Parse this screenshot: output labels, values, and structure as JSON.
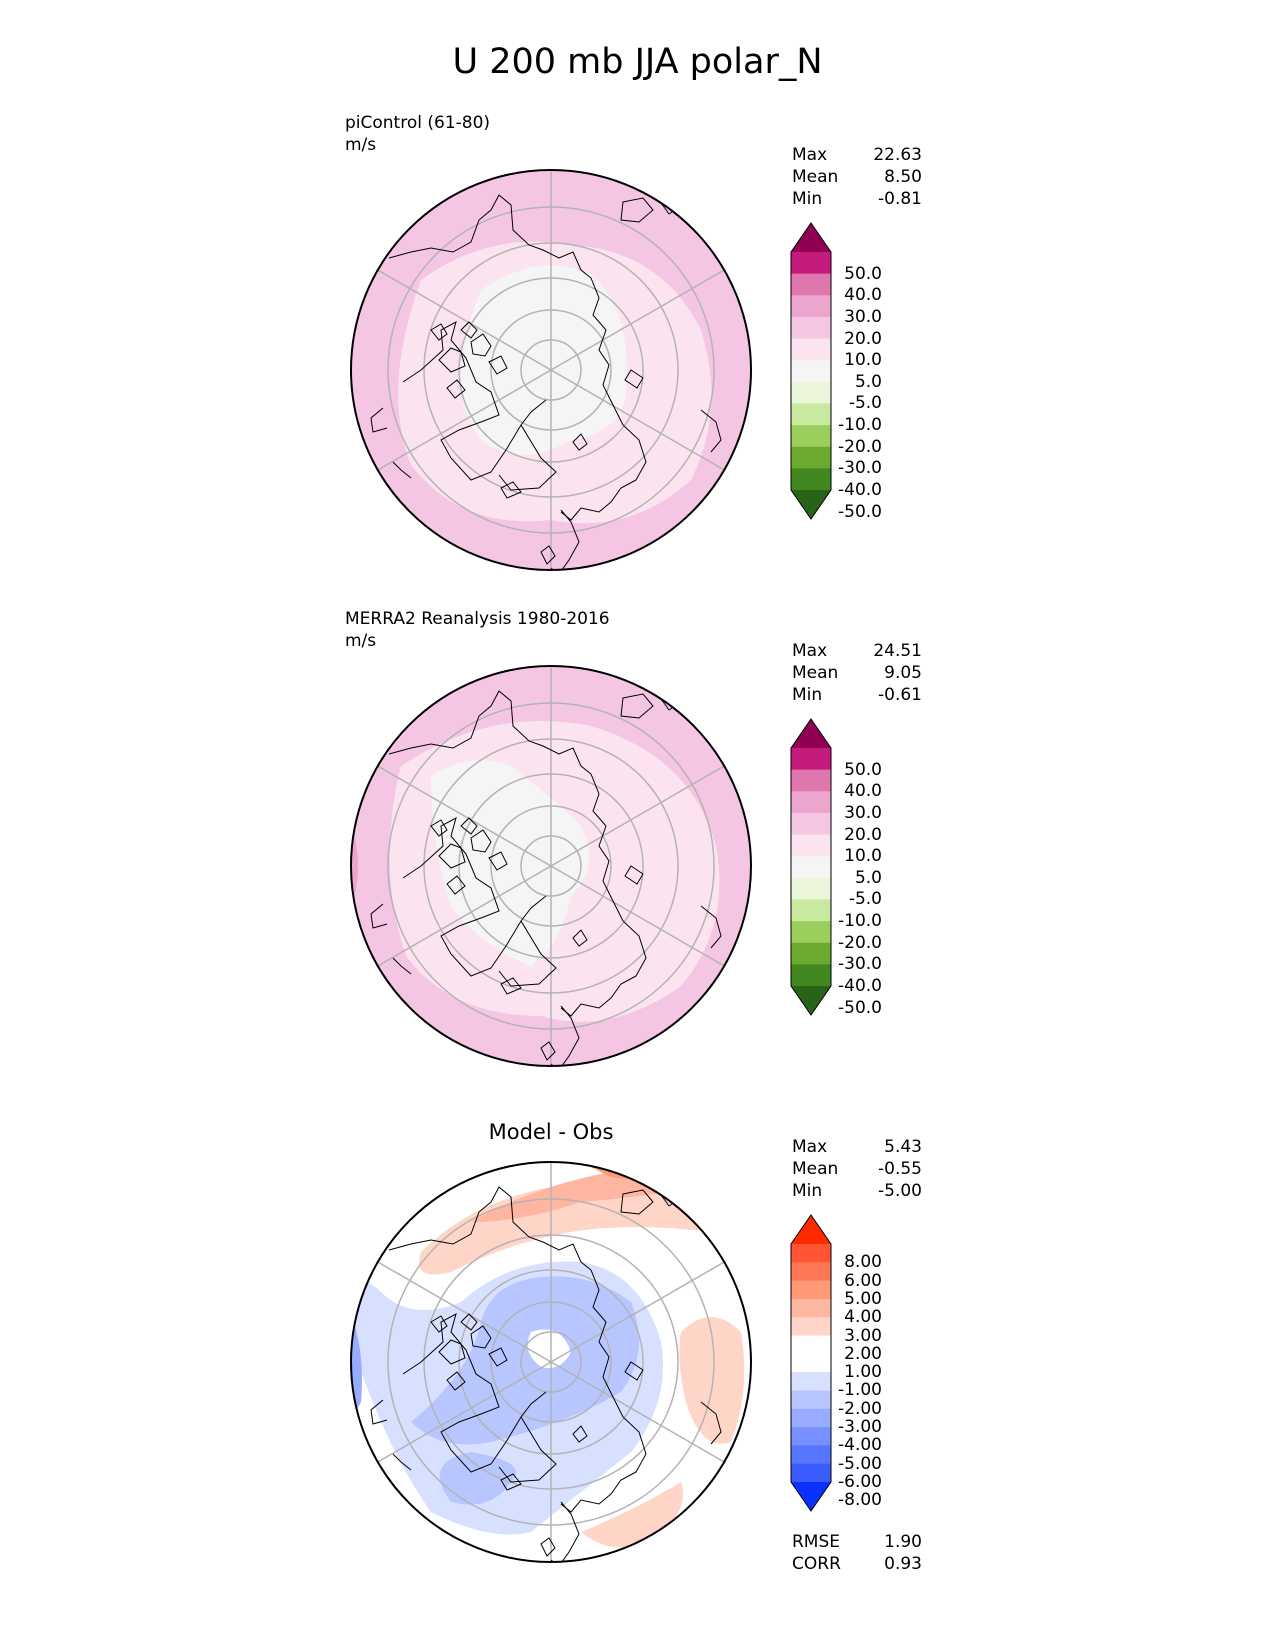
{
  "title": "U 200 mb JJA polar_N",
  "panels": [
    {
      "id": "model",
      "title_lines": [
        "piControl (61-80)",
        "m/s"
      ],
      "stats": [
        {
          "label": "Max",
          "value": "22.63"
        },
        {
          "label": "Mean",
          "value": "8.50"
        },
        {
          "label": "Min",
          "value": "-0.81"
        }
      ],
      "colorbar": {
        "labels": [
          "50.0",
          "40.0",
          "30.0",
          "20.0",
          "10.0",
          "5.0",
          "-5.0",
          "-10.0",
          "-20.0",
          "-30.0",
          "-40.0",
          "-50.0"
        ],
        "colors": [
          "#8e0152",
          "#c51b7d",
          "#de77ae",
          "#eca5cd",
          "#f4c6e3",
          "#fbe4f0",
          "#f5f5f5",
          "#eaf5d9",
          "#c9e9a0",
          "#9bcf5d",
          "#6aab2f",
          "#40881f",
          "#276419"
        ]
      },
      "fields": {
        "outer": "#f4c6e3",
        "mid": "#fbe4f0",
        "inner": "#f5f5f5",
        "strong": "#eca5cd"
      }
    },
    {
      "id": "obs",
      "title_lines": [
        "MERRA2 Reanalysis 1980-2016",
        "m/s"
      ],
      "stats": [
        {
          "label": "Max",
          "value": "24.51"
        },
        {
          "label": "Mean",
          "value": "9.05"
        },
        {
          "label": "Min",
          "value": "-0.61"
        }
      ],
      "colorbar": {
        "labels": [
          "50.0",
          "40.0",
          "30.0",
          "20.0",
          "10.0",
          "5.0",
          "-5.0",
          "-10.0",
          "-20.0",
          "-30.0",
          "-40.0",
          "-50.0"
        ],
        "colors": [
          "#8e0152",
          "#c51b7d",
          "#de77ae",
          "#eca5cd",
          "#f4c6e3",
          "#fbe4f0",
          "#f5f5f5",
          "#eaf5d9",
          "#c9e9a0",
          "#9bcf5d",
          "#6aab2f",
          "#40881f",
          "#276419"
        ]
      },
      "fields": {
        "outer": "#f4c6e3",
        "mid": "#fbe4f0",
        "inner": "#f5f5f5",
        "strong": "#eca5cd"
      }
    },
    {
      "id": "diff",
      "title": "Model - Obs",
      "stats": [
        {
          "label": "Max",
          "value": "5.43"
        },
        {
          "label": "Mean",
          "value": "-0.55"
        },
        {
          "label": "Min",
          "value": "-5.00"
        }
      ],
      "colorbar": {
        "labels": [
          "8.00",
          "6.00",
          "5.00",
          "4.00",
          "3.00",
          "2.00",
          "1.00",
          "-1.00",
          "-2.00",
          "-3.00",
          "-4.00",
          "-5.00",
          "-6.00",
          "-8.00"
        ],
        "colors": [
          "#ff2a00",
          "#ff5533",
          "#ff7755",
          "#ff9977",
          "#ffb6a0",
          "#ffd5c8",
          "#ffffff",
          "#ffffff",
          "#d8e0ff",
          "#b8c6ff",
          "#98abff",
          "#7890ff",
          "#5676ff",
          "#3a5cff",
          "#0a32ff"
        ]
      },
      "metrics": [
        {
          "label": "RMSE",
          "value": "1.90"
        },
        {
          "label": "CORR",
          "value": "0.93"
        }
      ]
    }
  ]
}
